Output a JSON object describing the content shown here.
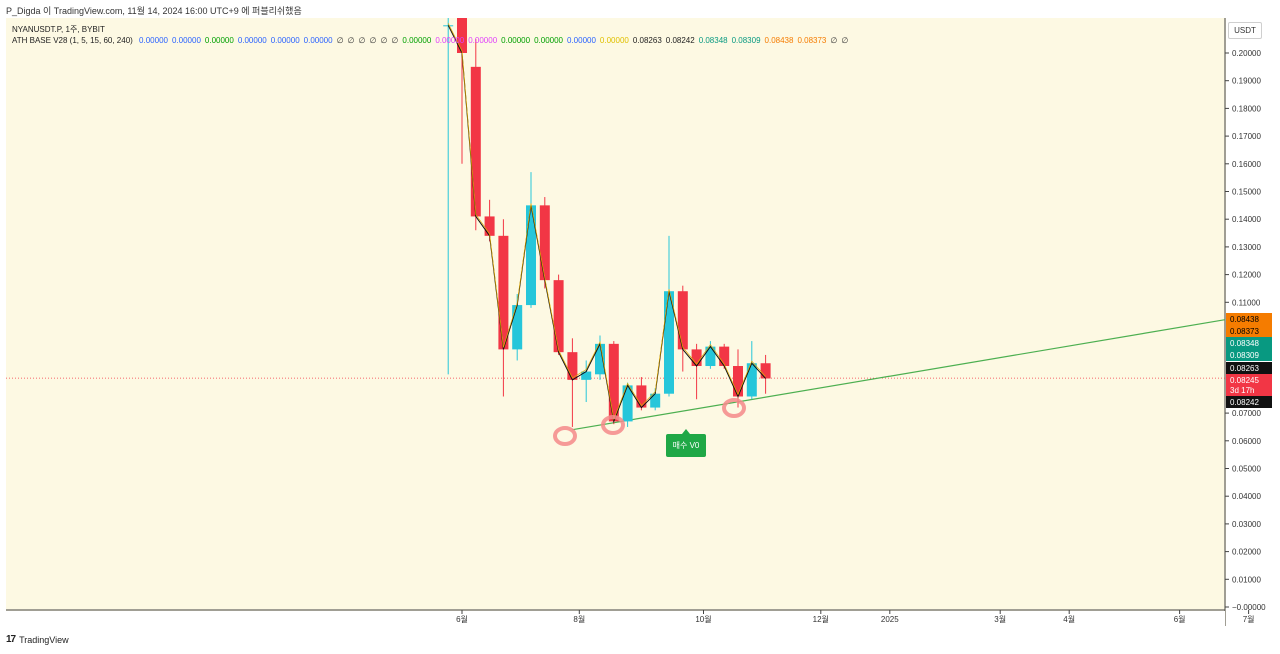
{
  "caption": "P_Digda 이 TradingView.com, 11월 14, 2024 16:00 UTC+9 에 퍼블리쉬했음",
  "symbol_line": "NYANUSDT.P, 1주, BYBIT",
  "indicator": {
    "name": "ATH BASE V28 (1, 5, 15, 60, 240)",
    "values": [
      {
        "text": "0.00000",
        "color": "#2962ff"
      },
      {
        "text": "0.00000",
        "color": "#2962ff"
      },
      {
        "text": "0.00000",
        "color": "#00a000"
      },
      {
        "text": "0.00000",
        "color": "#2962ff"
      },
      {
        "text": "0.00000",
        "color": "#2962ff"
      },
      {
        "text": "0.00000",
        "color": "#2962ff"
      },
      {
        "text": "∅",
        "color": "#333333"
      },
      {
        "text": "∅",
        "color": "#333333"
      },
      {
        "text": "∅",
        "color": "#333333"
      },
      {
        "text": "∅",
        "color": "#333333"
      },
      {
        "text": "∅",
        "color": "#333333"
      },
      {
        "text": "∅",
        "color": "#333333"
      },
      {
        "text": "0.00000",
        "color": "#00a000"
      },
      {
        "text": "0.00000",
        "color": "#e040fb"
      },
      {
        "text": "0.00000",
        "color": "#e040fb"
      },
      {
        "text": "0.00000",
        "color": "#00a000"
      },
      {
        "text": "0.00000",
        "color": "#00a000"
      },
      {
        "text": "0.00000",
        "color": "#2962ff"
      },
      {
        "text": "0.00000",
        "color": "#e0c000"
      },
      {
        "text": "0.08263",
        "color": "#222222"
      },
      {
        "text": "0.08242",
        "color": "#222222"
      },
      {
        "text": "0.08348",
        "color": "#089981"
      },
      {
        "text": "0.08309",
        "color": "#089981"
      },
      {
        "text": "0.08438",
        "color": "#f57c00"
      },
      {
        "text": "0.08373",
        "color": "#f57c00"
      },
      {
        "text": "∅",
        "color": "#333333"
      },
      {
        "text": "∅",
        "color": "#333333"
      }
    ]
  },
  "currency": "USDT",
  "price_axis": [
    "0.20000",
    "0.19000",
    "0.18000",
    "0.17000",
    "0.16000",
    "0.15000",
    "0.14000",
    "0.13000",
    "0.12000",
    "0.11000",
    "0.07000",
    "0.06000",
    "0.05000",
    "0.04000",
    "0.03000",
    "0.02000",
    "0.01000",
    "−0.00000"
  ],
  "price_tags": [
    {
      "text": "0.08438",
      "bg": "#f57c00",
      "fg": "#000000"
    },
    {
      "text": "0.08373",
      "bg": "#f57c00",
      "fg": "#000000"
    },
    {
      "text": "0.08348",
      "bg": "#089981",
      "fg": "#ffffff"
    },
    {
      "text": "0.08309",
      "bg": "#089981",
      "fg": "#ffffff"
    },
    {
      "text": "0.08263",
      "bg": "#111111",
      "fg": "#ffffff"
    },
    {
      "text": "0.08245",
      "bg": "#f23645",
      "fg": "#ffffff"
    },
    {
      "text": "3d 17h",
      "bg": "#f23645",
      "fg": "#ffffff"
    },
    {
      "text": "0.08242",
      "bg": "#111111",
      "fg": "#ffffff"
    }
  ],
  "time_axis": [
    {
      "label": "6월",
      "t": 14
    },
    {
      "label": "8월",
      "t": 22.5
    },
    {
      "label": "10월",
      "t": 31.5
    },
    {
      "label": "12월",
      "t": 40
    },
    {
      "label": "2025",
      "t": 45
    },
    {
      "label": "3월",
      "t": 53
    },
    {
      "label": "4월",
      "t": 58
    },
    {
      "label": "6월",
      "t": 66
    },
    {
      "label": "7월",
      "t": 71
    }
  ],
  "signal_label": "매수 V0",
  "footer_brand": "TradingView",
  "colors": {
    "up": "#26c6da",
    "down": "#f23645",
    "trendline": "#4caf50",
    "background": "#fdf9e3",
    "marker": "#f48a8a"
  },
  "chart_data": {
    "type": "candlestick",
    "title": "NYANUSDT.P, 1주, BYBIT",
    "ylim": [
      0,
      0.2
    ],
    "candles": [
      {
        "t": 13,
        "o": 0.21,
        "h": 0.27,
        "l": 0.084,
        "c": 0.21
      },
      {
        "t": 14,
        "o": 0.23,
        "h": 0.25,
        "l": 0.16,
        "c": 0.2
      },
      {
        "t": 15,
        "o": 0.195,
        "h": 0.205,
        "l": 0.136,
        "c": 0.141
      },
      {
        "t": 16,
        "o": 0.141,
        "h": 0.147,
        "l": 0.132,
        "c": 0.134
      },
      {
        "t": 17,
        "o": 0.134,
        "h": 0.14,
        "l": 0.076,
        "c": 0.093
      },
      {
        "t": 18,
        "o": 0.093,
        "h": 0.113,
        "l": 0.089,
        "c": 0.109
      },
      {
        "t": 19,
        "o": 0.109,
        "h": 0.157,
        "l": 0.108,
        "c": 0.145
      },
      {
        "t": 20,
        "o": 0.145,
        "h": 0.148,
        "l": 0.115,
        "c": 0.118
      },
      {
        "t": 21,
        "o": 0.118,
        "h": 0.12,
        "l": 0.091,
        "c": 0.092
      },
      {
        "t": 22,
        "o": 0.092,
        "h": 0.097,
        "l": 0.065,
        "c": 0.082
      },
      {
        "t": 23,
        "o": 0.082,
        "h": 0.089,
        "l": 0.074,
        "c": 0.085
      },
      {
        "t": 24,
        "o": 0.084,
        "h": 0.098,
        "l": 0.082,
        "c": 0.095
      },
      {
        "t": 25,
        "o": 0.095,
        "h": 0.096,
        "l": 0.066,
        "c": 0.067
      },
      {
        "t": 26,
        "o": 0.067,
        "h": 0.081,
        "l": 0.065,
        "c": 0.08
      },
      {
        "t": 27,
        "o": 0.08,
        "h": 0.083,
        "l": 0.071,
        "c": 0.072
      },
      {
        "t": 28,
        "o": 0.072,
        "h": 0.079,
        "l": 0.071,
        "c": 0.077
      },
      {
        "t": 29,
        "o": 0.077,
        "h": 0.134,
        "l": 0.076,
        "c": 0.114
      },
      {
        "t": 30,
        "o": 0.114,
        "h": 0.116,
        "l": 0.085,
        "c": 0.093
      },
      {
        "t": 31,
        "o": 0.093,
        "h": 0.095,
        "l": 0.075,
        "c": 0.087
      },
      {
        "t": 32,
        "o": 0.087,
        "h": 0.096,
        "l": 0.086,
        "c": 0.094
      },
      {
        "t": 33,
        "o": 0.094,
        "h": 0.095,
        "l": 0.086,
        "c": 0.087
      },
      {
        "t": 34,
        "o": 0.087,
        "h": 0.093,
        "l": 0.072,
        "c": 0.076
      },
      {
        "t": 35,
        "o": 0.076,
        "h": 0.096,
        "l": 0.075,
        "c": 0.088
      },
      {
        "t": 36,
        "o": 0.088,
        "h": 0.091,
        "l": 0.077,
        "c": 0.0825
      }
    ],
    "trendline": {
      "from": {
        "t": 22,
        "price": 0.064
      },
      "to": {
        "t": 72,
        "price": 0.106
      }
    },
    "last_price": 0.08263
  }
}
